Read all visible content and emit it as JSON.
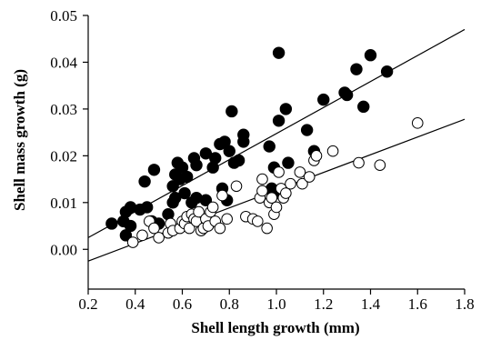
{
  "chart_data": {
    "type": "scatter",
    "xlabel": "Shell length growth (mm)",
    "ylabel": "Shell mass growth (g)",
    "xlim": [
      0.2,
      1.8
    ],
    "ylim": [
      -0.0085,
      0.05
    ],
    "x_ticks": [
      "0.2",
      "0.4",
      "0.6",
      "0.8",
      "1.0",
      "1.2",
      "1.4",
      "1.6",
      "1.8"
    ],
    "y_ticks": [
      "0.00",
      "0.01",
      "0.02",
      "0.03",
      "0.04",
      "0.05"
    ],
    "grid": false,
    "legend": "none",
    "series": [
      {
        "marker": "filled-circle",
        "color": "#000000",
        "points": [
          [
            0.3,
            0.0055
          ],
          [
            0.35,
            0.006
          ],
          [
            0.36,
            0.003
          ],
          [
            0.36,
            0.008
          ],
          [
            0.38,
            0.009
          ],
          [
            0.38,
            0.005
          ],
          [
            0.42,
            0.0085
          ],
          [
            0.44,
            0.0145
          ],
          [
            0.45,
            0.009
          ],
          [
            0.47,
            0.006
          ],
          [
            0.48,
            0.017
          ],
          [
            0.5,
            0.0055
          ],
          [
            0.54,
            0.0075
          ],
          [
            0.56,
            0.01
          ],
          [
            0.56,
            0.0135
          ],
          [
            0.57,
            0.016
          ],
          [
            0.57,
            0.011
          ],
          [
            0.58,
            0.0185
          ],
          [
            0.59,
            0.015
          ],
          [
            0.6,
            0.0175
          ],
          [
            0.61,
            0.012
          ],
          [
            0.62,
            0.0155
          ],
          [
            0.64,
            0.01
          ],
          [
            0.65,
            0.0195
          ],
          [
            0.66,
            0.018
          ],
          [
            0.66,
            0.011
          ],
          [
            0.7,
            0.0205
          ],
          [
            0.7,
            0.0105
          ],
          [
            0.73,
            0.0175
          ],
          [
            0.74,
            0.0195
          ],
          [
            0.76,
            0.0225
          ],
          [
            0.77,
            0.013
          ],
          [
            0.78,
            0.023
          ],
          [
            0.79,
            0.0105
          ],
          [
            0.8,
            0.021
          ],
          [
            0.81,
            0.0295
          ],
          [
            0.82,
            0.0185
          ],
          [
            0.84,
            0.019
          ],
          [
            0.86,
            0.0245
          ],
          [
            0.86,
            0.023
          ],
          [
            0.97,
            0.022
          ],
          [
            0.98,
            0.013
          ],
          [
            0.99,
            0.0175
          ],
          [
            1.0,
            0.012
          ],
          [
            1.01,
            0.042
          ],
          [
            1.01,
            0.0275
          ],
          [
            1.04,
            0.03
          ],
          [
            1.05,
            0.0185
          ],
          [
            1.13,
            0.0255
          ],
          [
            1.16,
            0.021
          ],
          [
            1.2,
            0.032
          ],
          [
            1.29,
            0.0335
          ],
          [
            1.3,
            0.033
          ],
          [
            1.34,
            0.0385
          ],
          [
            1.37,
            0.0305
          ],
          [
            1.4,
            0.0415
          ],
          [
            1.47,
            0.038
          ]
        ]
      },
      {
        "marker": "open-circle",
        "color": "#000000",
        "points": [
          [
            0.39,
            0.0015
          ],
          [
            0.43,
            0.003
          ],
          [
            0.46,
            0.006
          ],
          [
            0.48,
            0.0045
          ],
          [
            0.5,
            0.0025
          ],
          [
            0.54,
            0.0035
          ],
          [
            0.55,
            0.0055
          ],
          [
            0.56,
            0.004
          ],
          [
            0.59,
            0.0045
          ],
          [
            0.6,
            0.006
          ],
          [
            0.61,
            0.0055
          ],
          [
            0.62,
            0.007
          ],
          [
            0.63,
            0.0045
          ],
          [
            0.64,
            0.0075
          ],
          [
            0.65,
            0.0065
          ],
          [
            0.66,
            0.006
          ],
          [
            0.67,
            0.008
          ],
          [
            0.68,
            0.004
          ],
          [
            0.69,
            0.0045
          ],
          [
            0.7,
            0.0065
          ],
          [
            0.71,
            0.005
          ],
          [
            0.72,
            0.008
          ],
          [
            0.73,
            0.009
          ],
          [
            0.74,
            0.006
          ],
          [
            0.76,
            0.0045
          ],
          [
            0.77,
            0.0115
          ],
          [
            0.79,
            0.0065
          ],
          [
            0.83,
            0.0135
          ],
          [
            0.87,
            0.007
          ],
          [
            0.9,
            0.0065
          ],
          [
            0.92,
            0.006
          ],
          [
            0.93,
            0.011
          ],
          [
            0.94,
            0.015
          ],
          [
            0.94,
            0.0125
          ],
          [
            0.96,
            0.0045
          ],
          [
            0.97,
            0.01
          ],
          [
            0.98,
            0.011
          ],
          [
            0.99,
            0.0075
          ],
          [
            1.0,
            0.009
          ],
          [
            1.01,
            0.0165
          ],
          [
            1.02,
            0.013
          ],
          [
            1.03,
            0.011
          ],
          [
            1.04,
            0.012
          ],
          [
            1.06,
            0.014
          ],
          [
            1.1,
            0.0165
          ],
          [
            1.11,
            0.014
          ],
          [
            1.14,
            0.0155
          ],
          [
            1.16,
            0.019
          ],
          [
            1.17,
            0.02
          ],
          [
            1.24,
            0.021
          ],
          [
            1.35,
            0.0185
          ],
          [
            1.44,
            0.018
          ],
          [
            1.6,
            0.027
          ]
        ]
      }
    ],
    "fit_lines": [
      {
        "color": "#000000",
        "from": [
          0.2,
          0.0025
        ],
        "to": [
          1.8,
          0.047
        ]
      },
      {
        "color": "#000000",
        "from": [
          0.2,
          -0.0025
        ],
        "to": [
          1.8,
          0.0278
        ]
      }
    ]
  }
}
